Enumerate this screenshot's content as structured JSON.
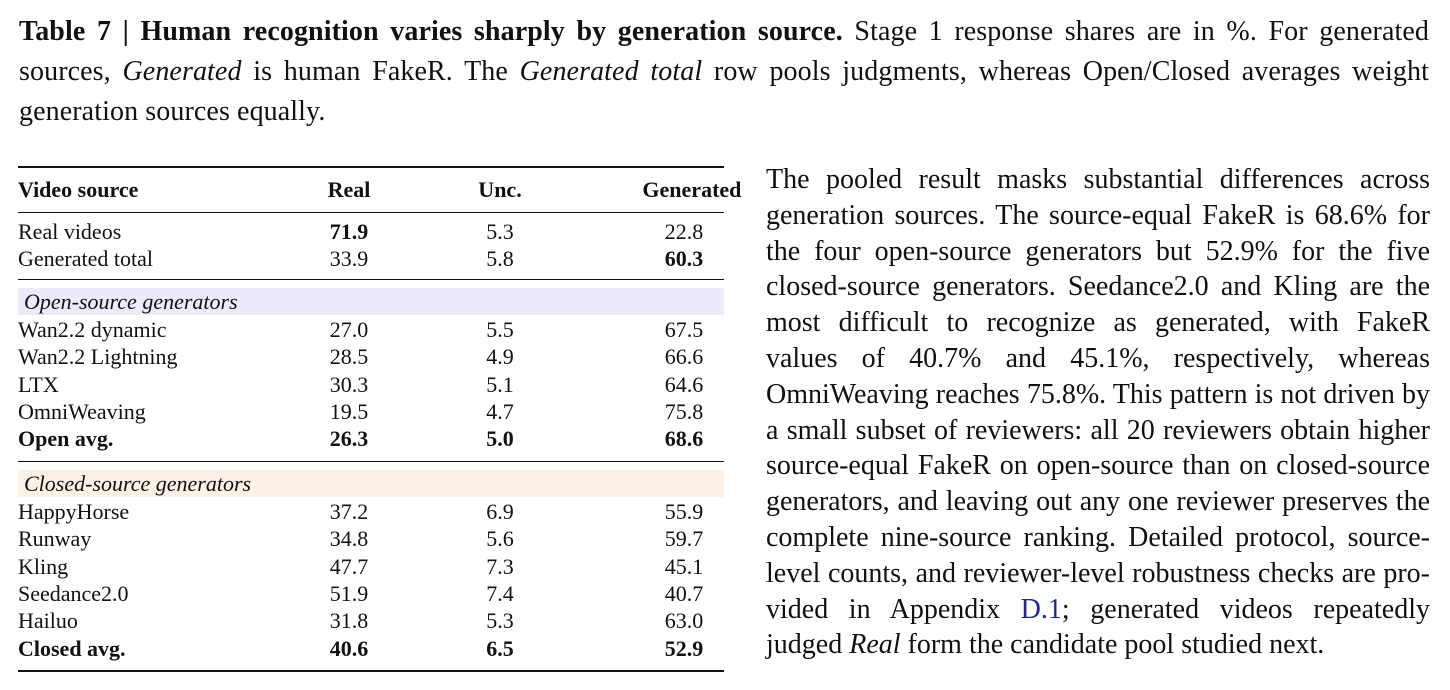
{
  "caption": {
    "label": "Table 7 | Human recognition varies sharply by generation source.",
    "text_1": " Stage 1 response shares are in %. For generated sources, ",
    "em_1": "Generated",
    "text_2": " is human FakeR. The ",
    "em_2": "Generated total",
    "text_3": " row pools judgments, whereas Open/Closed averages weight generation sources equally."
  },
  "table": {
    "headers": [
      "Video source",
      "Real",
      "Unc.",
      "Generated"
    ],
    "top_rows": [
      {
        "name": "Real videos",
        "real": "71.9",
        "unc": "5.3",
        "gen": "22.8"
      },
      {
        "name": "Generated total",
        "real": "33.9",
        "unc": "5.8",
        "gen": "60.3"
      }
    ],
    "open_group": {
      "label": "Open-source generators",
      "rows": [
        {
          "name": "Wan2.2 dynamic",
          "real": "27.0",
          "unc": "5.5",
          "gen": "67.5"
        },
        {
          "name": "Wan2.2 Lightning",
          "real": "28.5",
          "unc": "4.9",
          "gen": "66.6"
        },
        {
          "name": "LTX",
          "real": "30.3",
          "unc": "5.1",
          "gen": "64.6"
        },
        {
          "name": "OmniWeaving",
          "real": "19.5",
          "unc": "4.7",
          "gen": "75.8"
        }
      ],
      "avg": {
        "name": "Open avg.",
        "real": "26.3",
        "unc": "5.0",
        "gen": "68.6"
      }
    },
    "closed_group": {
      "label": "Closed-source generators",
      "rows": [
        {
          "name": "HappyHorse",
          "real": "37.2",
          "unc": "6.9",
          "gen": "55.9"
        },
        {
          "name": "Runway",
          "real": "34.8",
          "unc": "5.6",
          "gen": "59.7"
        },
        {
          "name": "Kling",
          "real": "47.7",
          "unc": "7.3",
          "gen": "45.1"
        },
        {
          "name": "Seedance2.0",
          "real": "51.9",
          "unc": "7.4",
          "gen": "40.7"
        },
        {
          "name": "Hailuo",
          "real": "31.8",
          "unc": "5.3",
          "gen": "63.0"
        }
      ],
      "avg": {
        "name": "Closed avg.",
        "real": "40.6",
        "unc": "6.5",
        "gen": "52.9"
      }
    },
    "colors": {
      "open_band": "#ebebfb",
      "closed_band": "#fcf1e6"
    }
  },
  "paragraph": {
    "text_1": "The pooled result masks substantial differences across generation sources. The source-equal FakeR is 68.6% for the four open-source generators but 52.9% for the five closed-source generators. Seedance2.0 and Kling are the most difficult to recognize as gener­ated, with FakeR values of 40.7% and 45.1%, respec­tively, whereas OmniWeaving reaches 75.8%. This pattern is not driven by a small subset of reviewers: all 20 reviewers obtain higher source-equal FakeR on open-source than on closed-source generators, and leaving out any one reviewer preserves the complete nine-source ranking. Detailed protocol, source-level counts, and reviewer-level robustness checks are pro­vided in Appendix ",
    "ref": "D.1",
    "text_2": "; generated videos repeatedly judged ",
    "em": "Real",
    "text_3": " form the candidate pool studied next.",
    "ref_color": "#1f2a8a"
  }
}
